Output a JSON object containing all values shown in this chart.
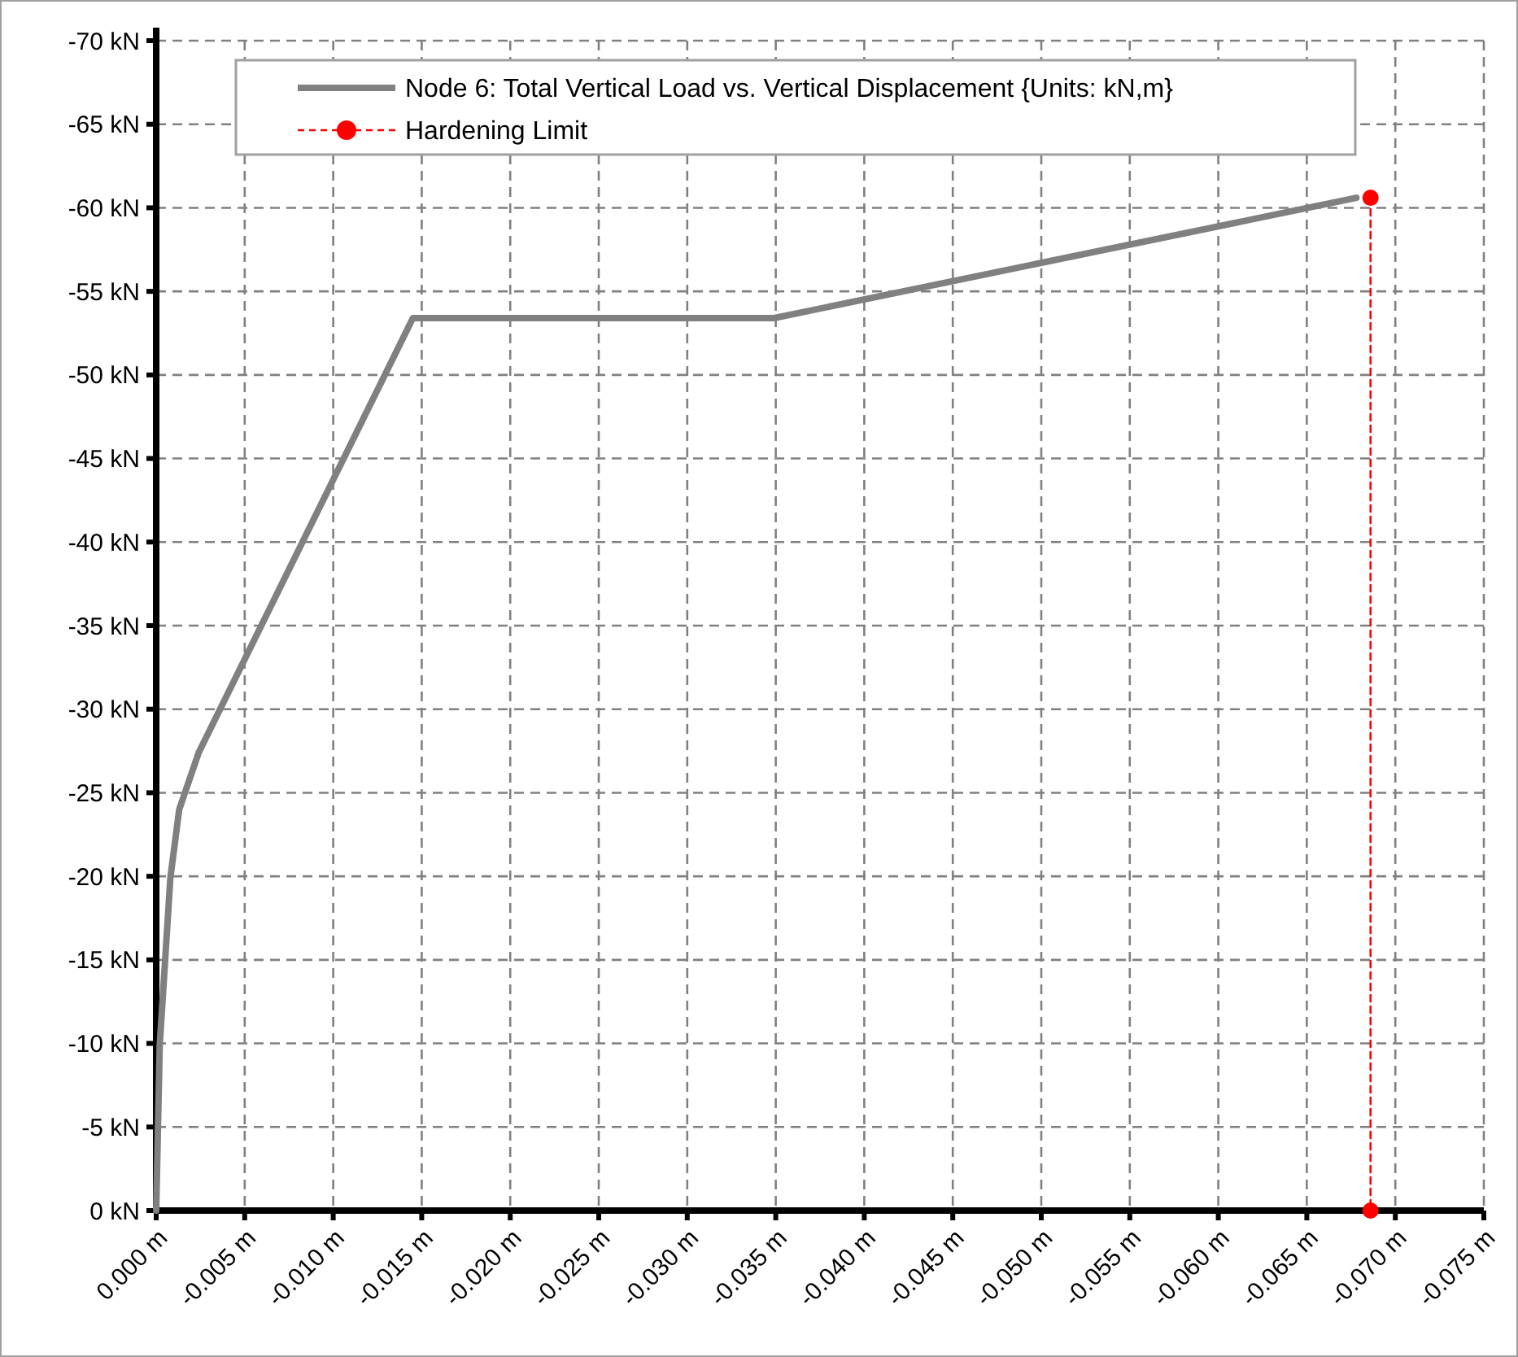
{
  "chart_data": {
    "type": "line",
    "xlim": [
      0,
      -0.075
    ],
    "ylim": [
      0,
      -70
    ],
    "xticks": [
      {
        "value": 0,
        "label": "0.000 m"
      },
      {
        "value": -0.005,
        "label": "-0.005 m"
      },
      {
        "value": -0.01,
        "label": "-0.010 m"
      },
      {
        "value": -0.015,
        "label": "-0.015 m"
      },
      {
        "value": -0.02,
        "label": "-0.020 m"
      },
      {
        "value": -0.025,
        "label": "-0.025 m"
      },
      {
        "value": -0.03,
        "label": "-0.030 m"
      },
      {
        "value": -0.035,
        "label": "-0.035 m"
      },
      {
        "value": -0.04,
        "label": "-0.040 m"
      },
      {
        "value": -0.045,
        "label": "-0.045 m"
      },
      {
        "value": -0.05,
        "label": "-0.050 m"
      },
      {
        "value": -0.055,
        "label": "-0.055 m"
      },
      {
        "value": -0.06,
        "label": "-0.060 m"
      },
      {
        "value": -0.065,
        "label": "-0.065 m"
      },
      {
        "value": -0.07,
        "label": "-0.070 m"
      },
      {
        "value": -0.075,
        "label": "-0.075 m"
      }
    ],
    "yticks": [
      {
        "value": 0,
        "label": "0 kN"
      },
      {
        "value": -5,
        "label": "-5 kN"
      },
      {
        "value": -10,
        "label": "-10 kN"
      },
      {
        "value": -15,
        "label": "-15 kN"
      },
      {
        "value": -20,
        "label": "-20 kN"
      },
      {
        "value": -25,
        "label": "-25 kN"
      },
      {
        "value": -30,
        "label": "-30 kN"
      },
      {
        "value": -35,
        "label": "-35 kN"
      },
      {
        "value": -40,
        "label": "-40 kN"
      },
      {
        "value": -45,
        "label": "-45 kN"
      },
      {
        "value": -50,
        "label": "-50 kN"
      },
      {
        "value": -55,
        "label": "-55 kN"
      },
      {
        "value": -60,
        "label": "-60 kN"
      },
      {
        "value": -65,
        "label": "-65 kN"
      },
      {
        "value": -70,
        "label": "-70 kN"
      }
    ],
    "grid": true,
    "legend": "top",
    "series": [
      {
        "name": "Node 6: Total Vertical Load vs. Vertical Displacement {Units: kN,m}",
        "color": "#808080",
        "x": [
          0,
          -0.0002,
          -0.0008,
          -0.0013,
          -0.0024,
          -0.0145,
          -0.0349,
          -0.0678
        ],
        "values": [
          0,
          -9.9,
          -19.9,
          -24.0,
          -27.4,
          -53.4,
          -53.4,
          -60.6
        ],
        "marker": "none",
        "line_style": "solid"
      },
      {
        "name": "Hardening Limit",
        "color": "#ff0000",
        "x": [
          -0.0686,
          -0.0686
        ],
        "values": [
          -60.6,
          0
        ],
        "marker": "circle",
        "line_style": "dashed"
      }
    ]
  }
}
